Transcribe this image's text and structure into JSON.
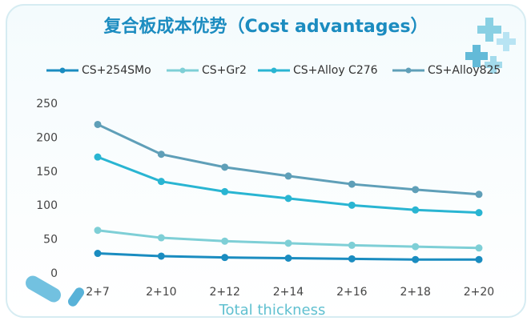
{
  "chart_data": {
    "type": "line",
    "title": "复合板成本优势（Cost advantages）",
    "x_label": "Total thickness",
    "categories": [
      "2+7",
      "2+10",
      "2+12",
      "2+14",
      "2+16",
      "2+18",
      "2+20"
    ],
    "series": [
      {
        "name": "CS+254SMo",
        "color": "#1a8cc0",
        "values": [
          30,
          26,
          24,
          23,
          22,
          21,
          21
        ]
      },
      {
        "name": "CS+Gr2",
        "color": "#7ecfd6",
        "values": [
          64,
          53,
          48,
          45,
          42,
          40,
          38
        ]
      },
      {
        "name": "CS+Alloy C276",
        "color": "#29b5d2",
        "values": [
          172,
          136,
          121,
          111,
          101,
          94,
          90
        ]
      },
      {
        "name": "CS+Alloy825",
        "color": "#5f9fb8",
        "values": [
          220,
          176,
          157,
          144,
          132,
          124,
          117
        ]
      }
    ],
    "ylim": [
      0,
      250
    ],
    "yticks": [
      0,
      50,
      100,
      150,
      200,
      250
    ],
    "grid": false,
    "legend": "top"
  }
}
